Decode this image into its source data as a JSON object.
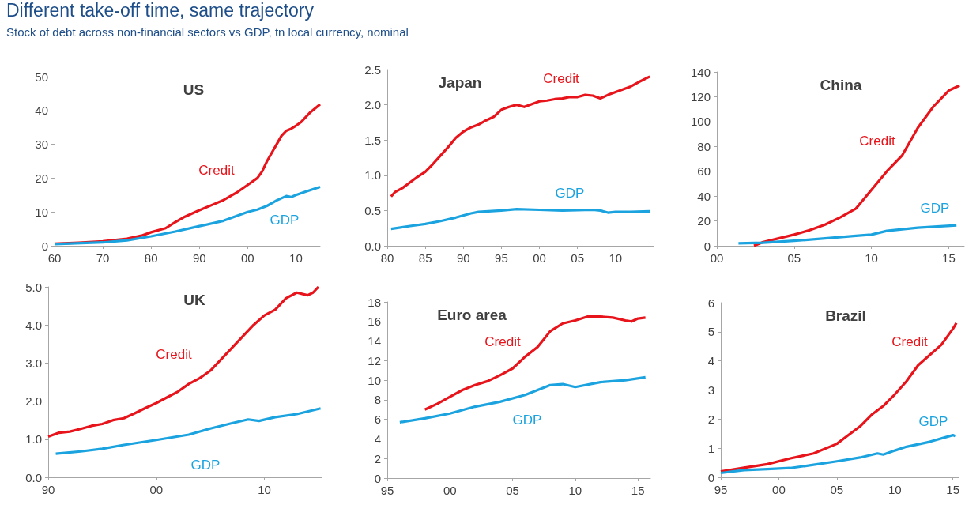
{
  "chart_data": [
    {
      "type": "line",
      "title": "US",
      "annotations": [
        "Different take-off time, same trajectory",
        "Stock of debt across non-financial sectors vs GDP, tn local currency, nominal"
      ],
      "marker": "none",
      "xlim": [
        1960,
        2015
      ],
      "xticks": [
        {
          "value": 1960,
          "label": "60"
        },
        {
          "value": 1970,
          "label": "70"
        },
        {
          "value": 1980,
          "label": "80"
        },
        {
          "value": 1990,
          "label": "90"
        },
        {
          "value": 2000,
          "label": "00"
        },
        {
          "value": 2010,
          "label": "10"
        }
      ],
      "ylim": [
        0,
        50
      ],
      "yticks": [
        0,
        10,
        20,
        30,
        40,
        50
      ],
      "series": [
        {
          "name": "Credit",
          "color": "#e8141b",
          "x": [
            1960,
            1965,
            1970,
            1975,
            1978,
            1980,
            1983,
            1985,
            1987,
            1990,
            1993,
            1995,
            1998,
            2000,
            2002,
            2003,
            2004,
            2005,
            2006,
            2007,
            2008,
            2009,
            2010,
            2011,
            2012,
            2013,
            2015
          ],
          "values": [
            0.6,
            0.9,
            1.3,
            2.1,
            3,
            4,
            5.2,
            7,
            8.6,
            10.5,
            12.3,
            13.5,
            16,
            18,
            20,
            22,
            25,
            27.5,
            30,
            32.5,
            34,
            34.6,
            35.5,
            36.5,
            38,
            39.5,
            41.8
          ]
        },
        {
          "name": "GDP",
          "color": "#1ba3e0",
          "x": [
            1960,
            1970,
            1975,
            1980,
            1985,
            1990,
            1995,
            2000,
            2002,
            2004,
            2006,
            2008,
            2009,
            2010,
            2012,
            2015
          ],
          "values": [
            0.5,
            1,
            1.6,
            2.8,
            4.2,
            5.8,
            7.4,
            10,
            10.7,
            11.8,
            13.4,
            14.7,
            14.4,
            15,
            16,
            17.4
          ]
        }
      ]
    },
    {
      "type": "line",
      "title": "Japan",
      "marker": "none",
      "xlim": [
        1980,
        2015
      ],
      "xticks": [
        {
          "value": 1980,
          "label": "80"
        },
        {
          "value": 1985,
          "label": "85"
        },
        {
          "value": 1990,
          "label": "90"
        },
        {
          "value": 1995,
          "label": "95"
        },
        {
          "value": 2000,
          "label": "00"
        },
        {
          "value": 2005,
          "label": "05"
        },
        {
          "value": 2010,
          "label": "10"
        }
      ],
      "ylim": [
        0,
        2.5
      ],
      "yticks": [
        {
          "value": 0,
          "label": "0.0"
        },
        0.5,
        {
          "value": 1,
          "label": "1.0"
        },
        1.5,
        {
          "value": 2,
          "label": "2.0"
        },
        2.5
      ],
      "series": [
        {
          "name": "Credit",
          "color": "#e8141b",
          "x": [
            1980.5,
            1981,
            1982,
            1983,
            1984,
            1985,
            1986,
            1987,
            1988,
            1989,
            1990,
            1991,
            1992,
            1993,
            1994,
            1995,
            1996,
            1997,
            1998,
            1999,
            2000,
            2001,
            2002,
            2003,
            2004,
            2005,
            2006,
            2007,
            2008,
            2009,
            2010,
            2011,
            2012,
            2013,
            2014.5
          ],
          "values": [
            0.7,
            0.76,
            0.82,
            0.9,
            0.98,
            1.05,
            1.16,
            1.28,
            1.4,
            1.53,
            1.62,
            1.68,
            1.72,
            1.78,
            1.83,
            1.93,
            1.97,
            2.0,
            1.97,
            2.01,
            2.05,
            2.06,
            2.08,
            2.09,
            2.11,
            2.11,
            2.14,
            2.13,
            2.09,
            2.14,
            2.18,
            2.22,
            2.26,
            2.32,
            2.4
          ]
        },
        {
          "name": "GDP",
          "color": "#1ba3e0",
          "x": [
            1980.5,
            1983,
            1985,
            1987,
            1989,
            1991,
            1992,
            1995,
            1997,
            2000,
            2003,
            2007,
            2008,
            2009,
            2010,
            2012,
            2014.5
          ],
          "values": [
            0.24,
            0.28,
            0.31,
            0.35,
            0.4,
            0.46,
            0.48,
            0.5,
            0.52,
            0.51,
            0.5,
            0.51,
            0.5,
            0.47,
            0.48,
            0.48,
            0.49
          ]
        }
      ]
    },
    {
      "type": "line",
      "title": "China",
      "marker": "none",
      "xlim": [
        2000,
        2016
      ],
      "xticks": [
        {
          "value": 2000,
          "label": "00"
        },
        {
          "value": 2005,
          "label": "05"
        },
        {
          "value": 2010,
          "label": "10"
        },
        {
          "value": 2015,
          "label": "15"
        }
      ],
      "ylim": [
        0,
        140
      ],
      "yticks": [
        0,
        20,
        40,
        60,
        80,
        100,
        120,
        140
      ],
      "series": [
        {
          "name": "Credit",
          "color": "#e8141b",
          "x": [
            2002.4,
            2003,
            2004,
            2005,
            2006,
            2007,
            2008,
            2009,
            2010,
            2011,
            2012,
            2013,
            2014,
            2015,
            2015.7
          ],
          "values": [
            0,
            3,
            6,
            9,
            12.5,
            17,
            23,
            30,
            45,
            60,
            73,
            95,
            112,
            125,
            129
          ]
        },
        {
          "name": "GDP",
          "color": "#1ba3e0",
          "x": [
            2001.4,
            2003,
            2005,
            2007,
            2009,
            2010,
            2011,
            2013,
            2015.5
          ],
          "values": [
            2,
            2.5,
            4,
            6,
            8,
            9,
            12,
            14.5,
            16.5
          ]
        }
      ]
    },
    {
      "type": "line",
      "title": "UK",
      "marker": "none",
      "xlim": [
        1990,
        2015.3
      ],
      "xticks": [
        {
          "value": 1990,
          "label": "90"
        },
        {
          "value": 2000,
          "label": "00"
        },
        {
          "value": 2010,
          "label": "10"
        }
      ],
      "ylim": [
        0,
        5
      ],
      "yticks": [
        {
          "value": 0,
          "label": "0.0"
        },
        {
          "value": 1,
          "label": "1.0"
        },
        {
          "value": 2,
          "label": "2.0"
        },
        {
          "value": 3,
          "label": "3.0"
        },
        {
          "value": 4,
          "label": "4.0"
        },
        {
          "value": 5,
          "label": "5.0"
        }
      ],
      "series": [
        {
          "name": "Credit",
          "color": "#e8141b",
          "x": [
            1990,
            1991,
            1992,
            1993,
            1994,
            1995,
            1996,
            1997,
            1998,
            1999,
            2000,
            2001,
            2002,
            2003,
            2004,
            2005,
            2006,
            2007,
            2008,
            2009,
            2010,
            2011,
            2012,
            2013,
            2014,
            2014.5,
            2015
          ],
          "values": [
            1.07,
            1.17,
            1.2,
            1.27,
            1.35,
            1.4,
            1.5,
            1.55,
            1.68,
            1.82,
            1.95,
            2.1,
            2.25,
            2.45,
            2.6,
            2.8,
            3.1,
            3.4,
            3.7,
            4.0,
            4.25,
            4.4,
            4.7,
            4.85,
            4.78,
            4.85,
            5.0
          ]
        },
        {
          "name": "GDP",
          "color": "#1ba3e0",
          "x": [
            1990.7,
            1993,
            1995,
            1997,
            2000,
            2003,
            2005,
            2007,
            2008.5,
            2009.5,
            2011,
            2013,
            2015.2
          ],
          "values": [
            0.62,
            0.68,
            0.75,
            0.85,
            0.98,
            1.12,
            1.28,
            1.42,
            1.52,
            1.48,
            1.58,
            1.66,
            1.81
          ]
        }
      ]
    },
    {
      "type": "line",
      "title": "Euro area",
      "marker": "none",
      "xlim": [
        1995,
        2016
      ],
      "xticks": [
        {
          "value": 1995,
          "label": "95"
        },
        {
          "value": 2000,
          "label": "00"
        },
        {
          "value": 2005,
          "label": "05"
        },
        {
          "value": 2010,
          "label": "10"
        },
        {
          "value": 2015,
          "label": "15"
        }
      ],
      "ylim": [
        0,
        18
      ],
      "yticks": [
        0,
        2,
        4,
        6,
        8,
        10,
        12,
        14,
        16,
        18
      ],
      "series": [
        {
          "name": "Credit",
          "color": "#e8141b",
          "x": [
            1998,
            1999,
            2000,
            2001,
            2002,
            2003,
            2004,
            2005,
            2006,
            2007,
            2008,
            2009,
            2010,
            2011,
            2012,
            2013,
            2014,
            2014.5,
            2015,
            2015.6
          ],
          "values": [
            7.0,
            7.6,
            8.3,
            9.0,
            9.5,
            9.9,
            10.5,
            11.2,
            12.4,
            13.4,
            15.0,
            15.8,
            16.1,
            16.5,
            16.5,
            16.4,
            16.1,
            16.0,
            16.3,
            16.4
          ]
        },
        {
          "name": "GDP",
          "color": "#1ba3e0",
          "x": [
            1996,
            1998,
            2000,
            2002,
            2004,
            2006,
            2008,
            2009,
            2010,
            2012,
            2014,
            2015.6
          ],
          "values": [
            5.7,
            6.1,
            6.6,
            7.3,
            7.8,
            8.5,
            9.5,
            9.6,
            9.3,
            9.8,
            10.0,
            10.3
          ]
        }
      ]
    },
    {
      "type": "line",
      "title": "Brazil",
      "marker": "none",
      "xlim": [
        1995,
        2015.5
      ],
      "xticks": [
        {
          "value": 1995,
          "label": "95"
        },
        {
          "value": 2000,
          "label": "00"
        },
        {
          "value": 2005,
          "label": "05"
        },
        {
          "value": 2010,
          "label": "10"
        },
        {
          "value": 2015,
          "label": "15"
        }
      ],
      "ylim": [
        0,
        6
      ],
      "yticks": [
        0,
        1,
        2,
        3,
        4,
        5,
        6
      ],
      "series": [
        {
          "name": "Credit",
          "color": "#e8141b",
          "x": [
            1995,
            1997,
            1999,
            2001,
            2003,
            2005,
            2006,
            2007,
            2008,
            2009,
            2010,
            2011,
            2012,
            2013,
            2014,
            2015,
            2015.3
          ],
          "values": [
            0.2,
            0.33,
            0.45,
            0.65,
            0.82,
            1.15,
            1.45,
            1.75,
            2.15,
            2.45,
            2.85,
            3.3,
            3.85,
            4.2,
            4.55,
            5.1,
            5.3
          ]
        },
        {
          "name": "GDP",
          "color": "#1ba3e0",
          "x": [
            1995,
            1997,
            1999,
            2001,
            2003,
            2005,
            2007,
            2008.5,
            2009,
            2010,
            2011,
            2013,
            2015,
            2015.2
          ],
          "values": [
            0.15,
            0.25,
            0.28,
            0.32,
            0.43,
            0.55,
            0.68,
            0.82,
            0.78,
            0.92,
            1.05,
            1.22,
            1.45,
            1.42
          ]
        }
      ]
    }
  ]
}
